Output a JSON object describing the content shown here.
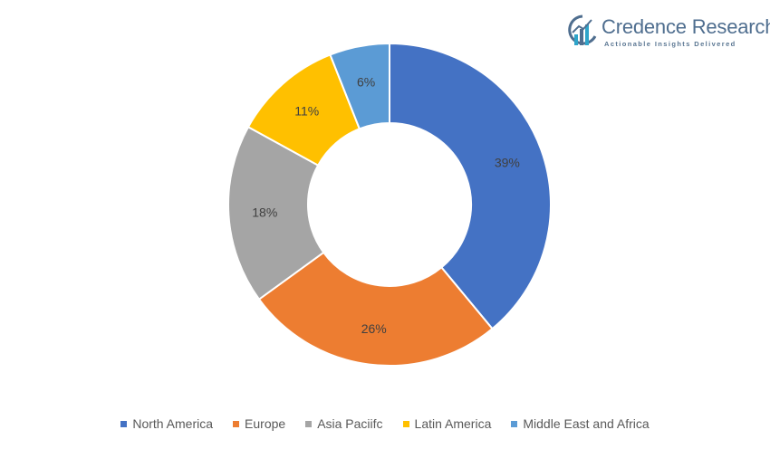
{
  "brand": {
    "name": "Credence Research",
    "tagline": "Actionable Insights Delivered",
    "icon": "credence-logo-icon"
  },
  "chart_data": {
    "type": "pie",
    "variant": "donut",
    "title": "",
    "start_angle_deg": 0,
    "direction": "clockwise",
    "legend_position": "bottom",
    "categories": [
      "North America",
      "Europe",
      "Asia Paciifc",
      "Latin America",
      "Middle East and Africa"
    ],
    "values": [
      39,
      26,
      18,
      11,
      6
    ],
    "labels": [
      "39%",
      "26%",
      "18%",
      "11%",
      "6%"
    ],
    "colors": [
      "#4472c4",
      "#ed7d31",
      "#a5a5a5",
      "#ffc000",
      "#5b9bd5"
    ]
  }
}
